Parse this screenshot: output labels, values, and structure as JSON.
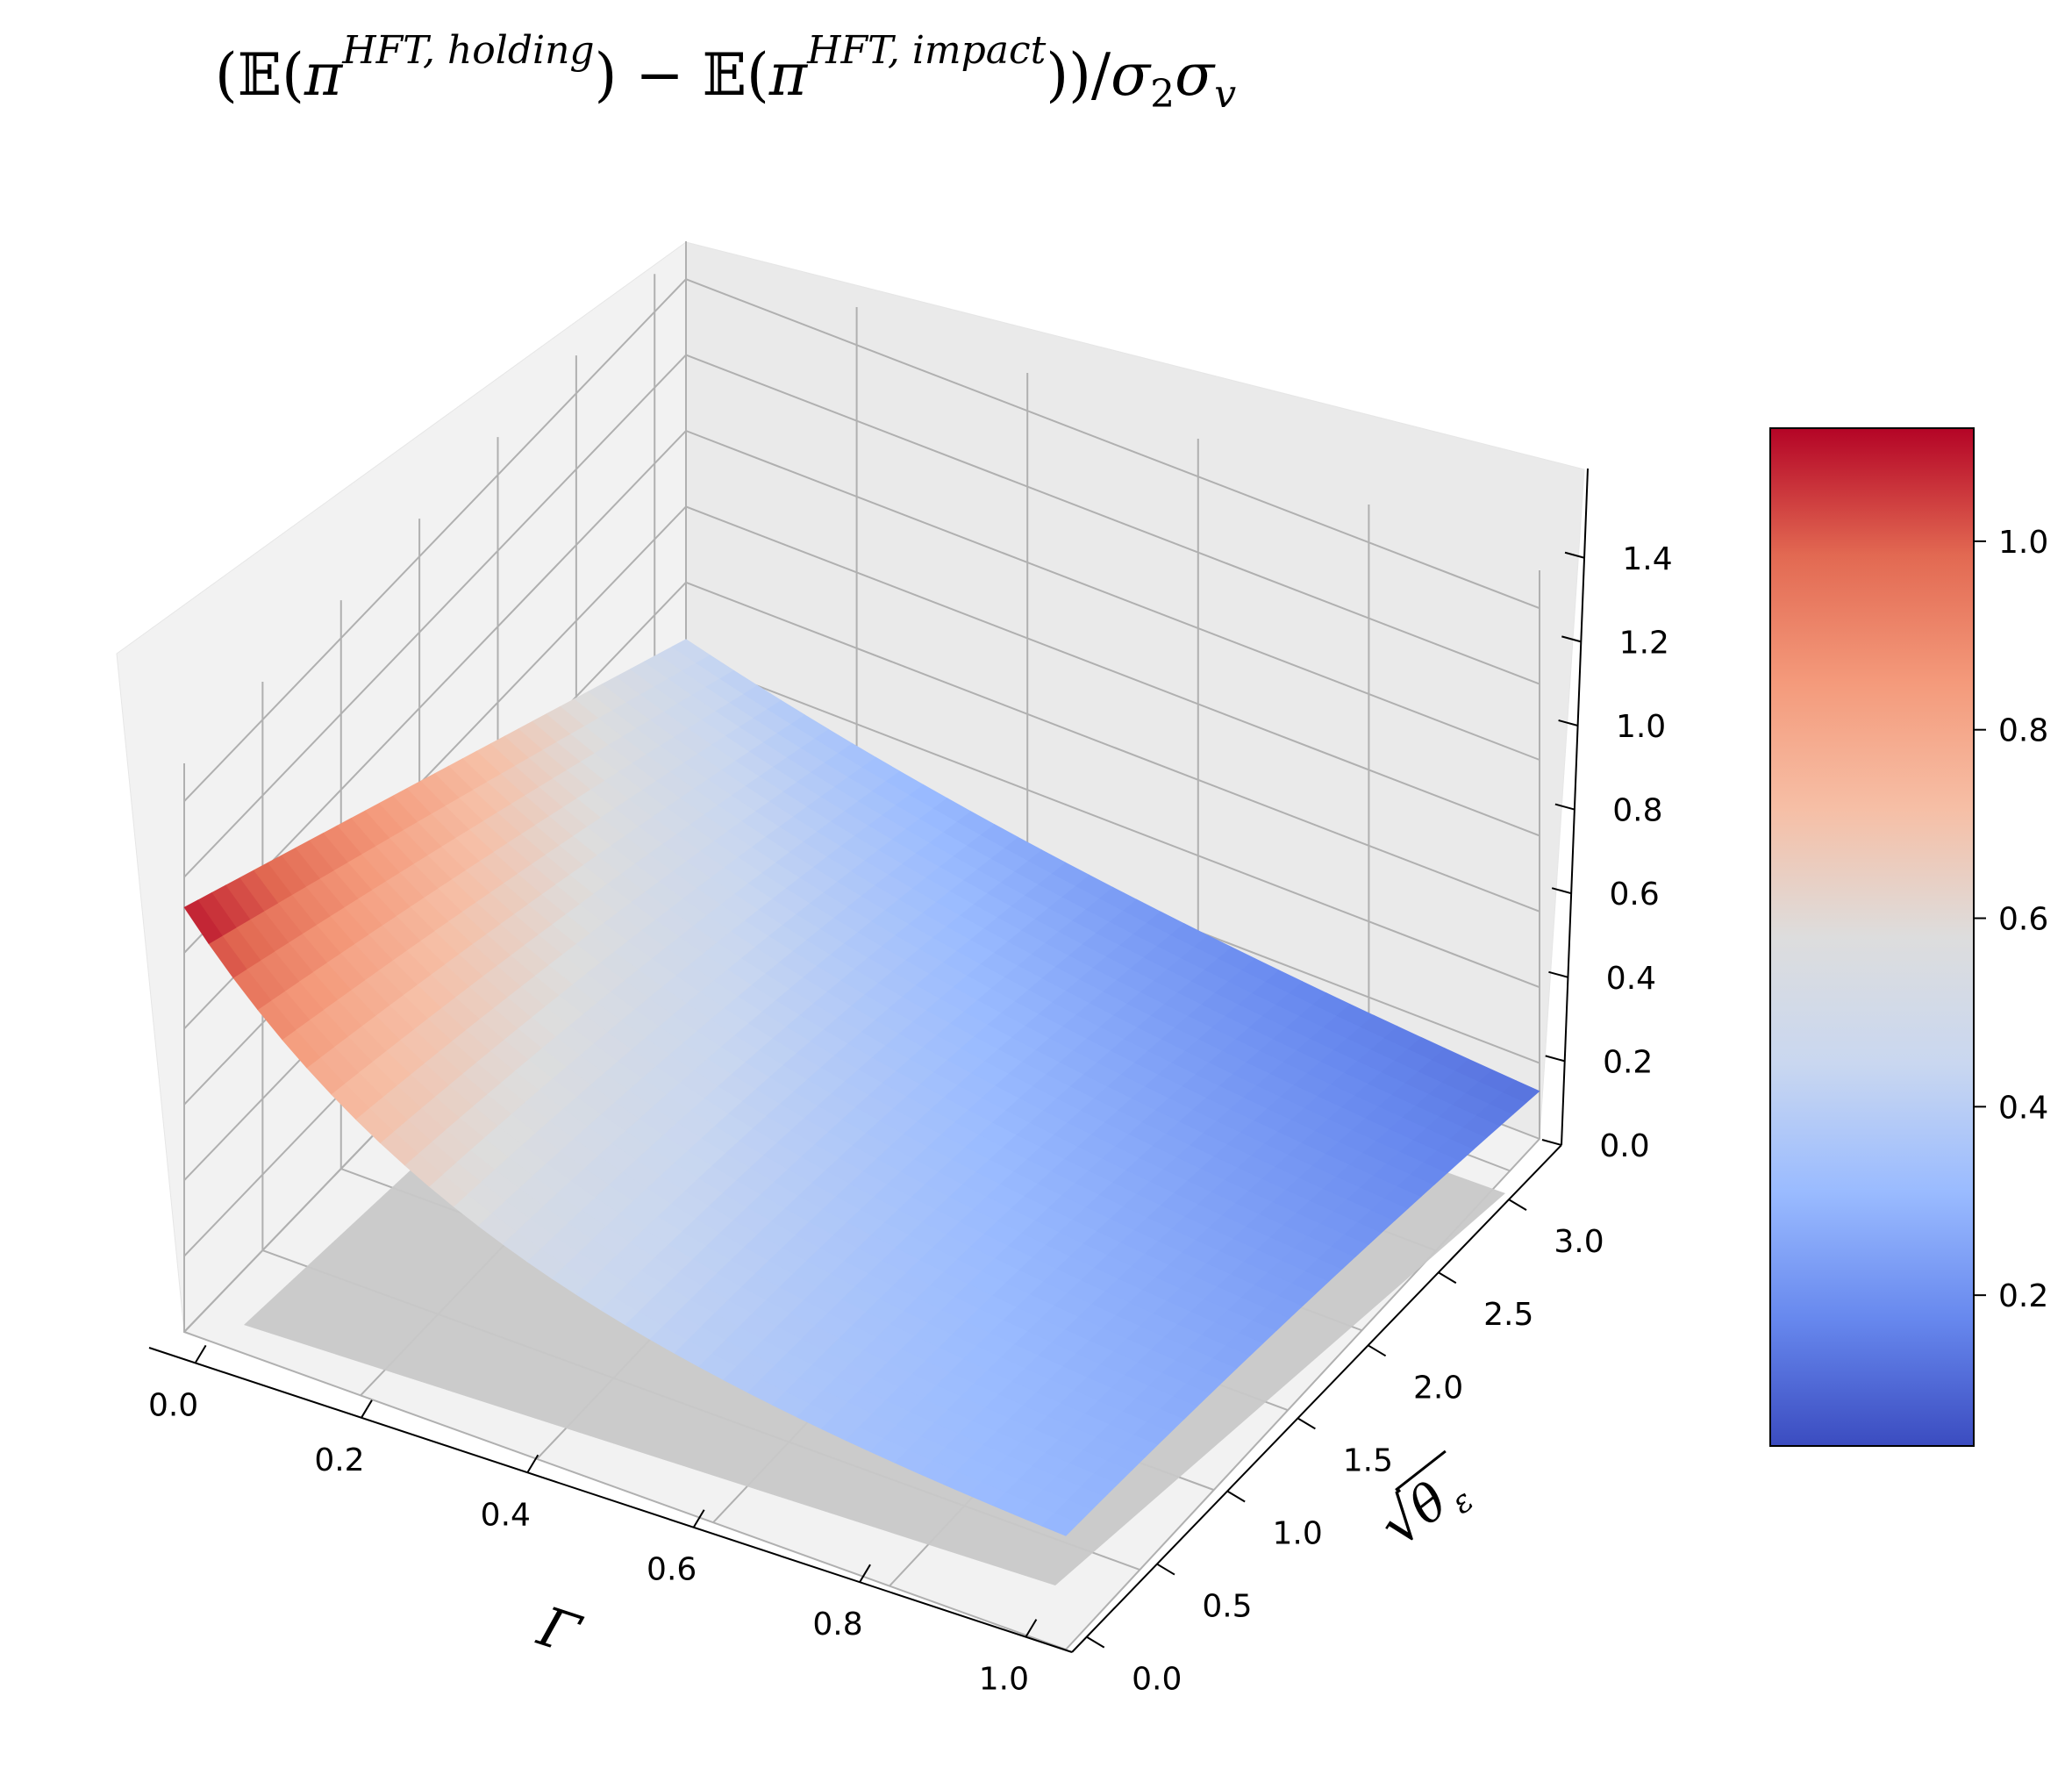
{
  "chart_data": {
    "type": "surface3d",
    "title": {
      "open": "(",
      "E1": "𝔼",
      "p1": "(",
      "pi1": "π",
      "sup1": "HFT, holding",
      "close1": ")",
      "minus": " − ",
      "E2": "𝔼",
      "p2": "(",
      "pi2": "π",
      "sup2": "HFT, impact",
      "close2": "))/",
      "sigma2": "σ",
      "sub2": "2",
      "sigmav": "σ",
      "subv": "v"
    },
    "xlabel": "Γ",
    "ylabel_radical": "√",
    "ylabel_theta": "θ",
    "ylabel_sub": "ε",
    "zlabel": "",
    "xlim": [
      0,
      1
    ],
    "ylim": [
      0,
      3.2
    ],
    "zlim": [
      0,
      1.5
    ],
    "x_ticks": [
      "0.0",
      "0.2",
      "0.4",
      "0.6",
      "0.8",
      "1.0"
    ],
    "y_ticks": [
      "0.0",
      "0.5",
      "1.0",
      "1.5",
      "2.0",
      "2.5",
      "3.0"
    ],
    "z_ticks": [
      "0.0",
      "0.2",
      "0.4",
      "0.6",
      "0.8",
      "1.0",
      "1.2",
      "1.4"
    ],
    "surface_corners": {
      "gamma_0_theta_0": 1.12,
      "gamma_0_theta_max": 0.45,
      "gamma_1_theta_0": 0.3,
      "gamma_1_theta_max": 0.05
    },
    "grey_plane_z": 0,
    "colormap": "coolwarm",
    "colorbar": {
      "range": [
        0.04,
        1.12
      ],
      "ticks": [
        "0.2",
        "0.4",
        "0.6",
        "0.8",
        "1.0"
      ],
      "colors": [
        "#3b4cc0",
        "#6788ee",
        "#9abbff",
        "#c9d7f0",
        "#dddddd",
        "#f6bfa6",
        "#f49a7b",
        "#e26952",
        "#b40426"
      ]
    },
    "pane_color": "#f2f2f2",
    "grid": true
  }
}
